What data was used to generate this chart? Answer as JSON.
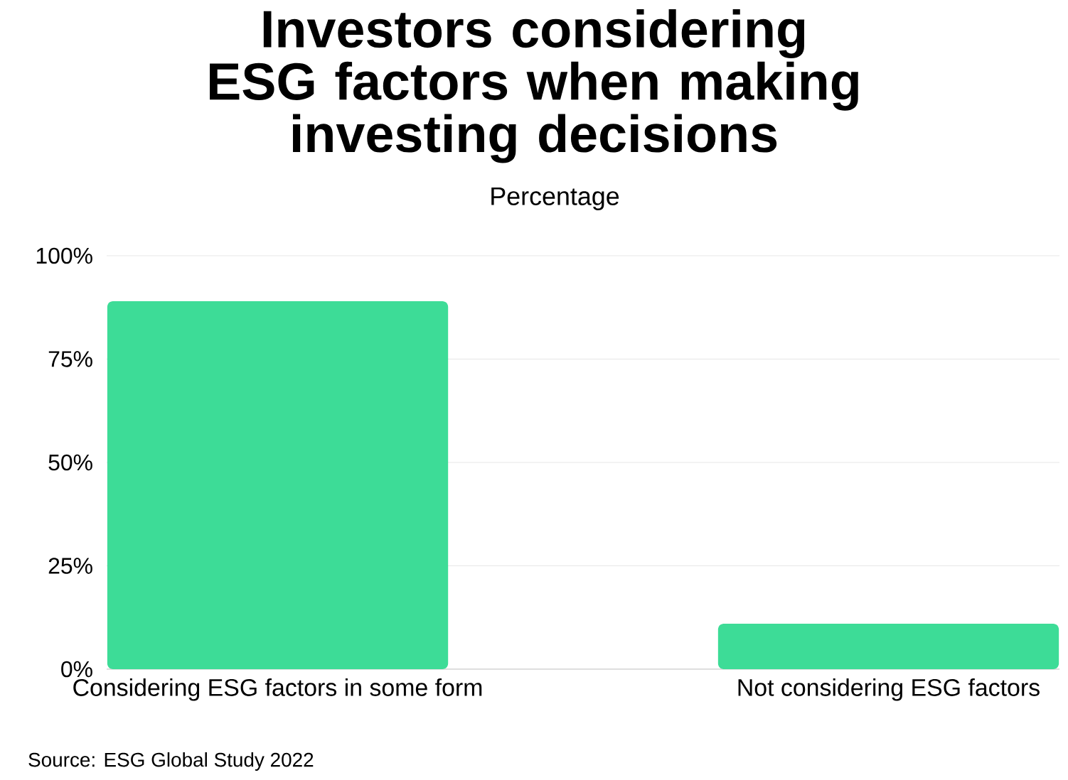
{
  "chart_data": {
    "type": "bar",
    "title": "Investors considering ESG factors when making investing decisions",
    "subtitle": "Percentage",
    "categories": [
      "Considering ESG factors in some form",
      "Not considering ESG factors"
    ],
    "values": [
      89,
      11
    ],
    "color": "#3ddc97",
    "ylim": [
      0,
      100
    ],
    "yticks": [
      {
        "value": 0,
        "label": "0%"
      },
      {
        "value": 25,
        "label": "25%"
      },
      {
        "value": 50,
        "label": "50%"
      },
      {
        "value": 75,
        "label": "75%"
      },
      {
        "value": 100,
        "label": "100%"
      }
    ],
    "grid": "y",
    "annotations": [
      "Source: ESG Global Study 2022"
    ]
  }
}
